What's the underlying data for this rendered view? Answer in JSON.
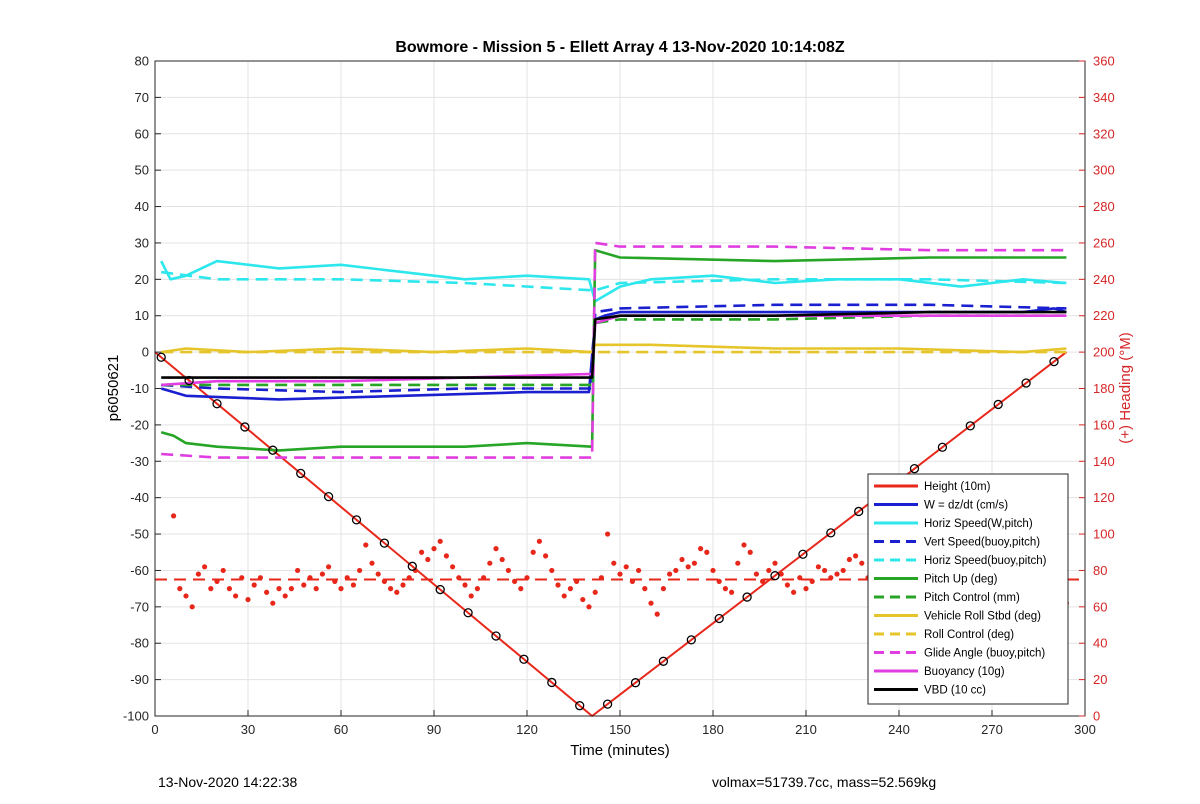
{
  "footer": {
    "timestamp": "13-Nov-2020 14:22:38",
    "summary": "volmax=51739.7cc, mass=52.569kg"
  },
  "chart_data": {
    "type": "line",
    "title": "Bowmore - Mission 5 - Ellett Array 4 13-Nov-2020 10:14:08Z",
    "xlabel": "Time (minutes)",
    "ylabel": "p6050621",
    "y2label": "(+) Heading (°M)",
    "xlim": [
      0,
      300
    ],
    "ylim": [
      -100,
      80
    ],
    "y2lim": [
      0,
      360
    ],
    "xticks": [
      0,
      30,
      60,
      90,
      120,
      150,
      180,
      210,
      240,
      270,
      300
    ],
    "yticks": [
      -100,
      -90,
      -80,
      -70,
      -60,
      -50,
      -40,
      -30,
      -20,
      -10,
      0,
      10,
      20,
      30,
      40,
      50,
      60,
      70,
      80
    ],
    "y2ticks": [
      0,
      20,
      40,
      60,
      80,
      100,
      120,
      140,
      160,
      180,
      200,
      220,
      240,
      260,
      280,
      300,
      320,
      340,
      360
    ],
    "grid": true,
    "legend_position": "lower-right",
    "colors": {
      "red": "#e8271b",
      "blue": "#1a1fcf",
      "cyan": "#2de7ec",
      "green": "#27a526",
      "yellow": "#e5c52a",
      "magenta": "#e03ee0",
      "black": "#000000",
      "heading_axis": "#d62728"
    },
    "series": [
      {
        "name": "Height (10m)",
        "color": "red",
        "style": "solid",
        "x": [
          0,
          141,
          294
        ],
        "y": [
          0,
          -100,
          0
        ]
      },
      {
        "name": "W = dz/dt (cm/s)",
        "color": "blue",
        "style": "solid",
        "x": [
          2,
          10,
          40,
          80,
          120,
          140,
          142,
          145,
          150,
          160,
          200,
          240,
          280,
          290,
          294
        ],
        "y": [
          -10,
          -12,
          -13,
          -12,
          -11,
          -11,
          9,
          10,
          11,
          11,
          11,
          11,
          11,
          12,
          11
        ]
      },
      {
        "name": "Horiz Speed(W,pitch)",
        "color": "cyan",
        "style": "solid",
        "x": [
          2,
          5,
          10,
          20,
          40,
          60,
          80,
          100,
          120,
          140,
          142,
          150,
          160,
          180,
          200,
          220,
          240,
          260,
          280,
          294
        ],
        "y": [
          25,
          20,
          21,
          25,
          23,
          24,
          22,
          20,
          21,
          20,
          14,
          18,
          20,
          21,
          19,
          20,
          20,
          18,
          20,
          19
        ]
      },
      {
        "name": "Vert Speed(buoy,pitch)",
        "color": "blue",
        "style": "dashed",
        "x": [
          2,
          20,
          60,
          100,
          141,
          142,
          150,
          200,
          250,
          294
        ],
        "y": [
          -9,
          -10,
          -11,
          -10,
          -10,
          11,
          12,
          13,
          13,
          12
        ]
      },
      {
        "name": "Horiz Speed(buoy,pitch)",
        "color": "cyan",
        "style": "dashed",
        "x": [
          2,
          20,
          60,
          100,
          141,
          142,
          150,
          200,
          250,
          294
        ],
        "y": [
          22,
          20,
          20,
          19,
          17,
          17,
          19,
          20,
          20,
          19
        ]
      },
      {
        "name": "Pitch Up (deg)",
        "color": "green",
        "style": "solid",
        "x": [
          2,
          6,
          10,
          20,
          40,
          60,
          80,
          100,
          120,
          141,
          142,
          150,
          200,
          250,
          294
        ],
        "y": [
          -22,
          -23,
          -25,
          -26,
          -27,
          -26,
          -26,
          -26,
          -25,
          -26,
          28,
          26,
          25,
          26,
          26
        ]
      },
      {
        "name": "Pitch Control (mm)",
        "color": "green",
        "style": "dashed",
        "x": [
          2,
          20,
          60,
          100,
          141,
          142,
          150,
          200,
          250,
          294
        ],
        "y": [
          -9,
          -9,
          -9,
          -9,
          -9,
          8,
          9,
          9,
          10,
          10
        ]
      },
      {
        "name": "Vehicle Roll Stbd (deg)",
        "color": "yellow",
        "style": "solid",
        "x": [
          2,
          10,
          30,
          60,
          90,
          120,
          141,
          142,
          160,
          200,
          240,
          280,
          294
        ],
        "y": [
          0,
          1,
          0,
          1,
          0,
          1,
          0,
          2,
          2,
          1,
          1,
          0,
          1
        ]
      },
      {
        "name": "Roll Control (deg)",
        "color": "yellow",
        "style": "dashed",
        "x": [
          2,
          20,
          60,
          100,
          141,
          142,
          180,
          240,
          294
        ],
        "y": [
          0,
          0,
          0,
          0,
          0,
          0,
          0,
          0,
          0
        ]
      },
      {
        "name": "Glide Angle (buoy,pitch)",
        "color": "magenta",
        "style": "dashed",
        "x": [
          2,
          20,
          60,
          100,
          141,
          142,
          150,
          200,
          250,
          294
        ],
        "y": [
          -28,
          -29,
          -29,
          -29,
          -29,
          30,
          29,
          29,
          28,
          28
        ]
      },
      {
        "name": "Buoyancy (10g)",
        "color": "magenta",
        "style": "solid",
        "x": [
          2,
          20,
          60,
          100,
          141,
          142,
          150,
          200,
          250,
          294
        ],
        "y": [
          -9,
          -8,
          -8,
          -7,
          -6,
          8,
          10,
          10,
          10,
          10
        ]
      },
      {
        "name": "VBD (10 cc)",
        "color": "black",
        "style": "solid",
        "x": [
          2,
          141,
          142,
          150,
          200,
          250,
          294
        ],
        "y": [
          -7,
          -7,
          9,
          10,
          10,
          11,
          11
        ]
      }
    ],
    "heading_reference": {
      "y2": 75,
      "color": "red",
      "style": "dashed"
    },
    "heading_points": {
      "x": [
        6,
        8,
        10,
        12,
        14,
        16,
        18,
        20,
        22,
        24,
        26,
        28,
        30,
        32,
        34,
        36,
        38,
        40,
        42,
        44,
        46,
        48,
        50,
        52,
        54,
        56,
        58,
        60,
        62,
        64,
        66,
        68,
        70,
        72,
        74,
        76,
        78,
        80,
        82,
        84,
        86,
        88,
        90,
        92,
        94,
        96,
        98,
        100,
        102,
        104,
        106,
        108,
        110,
        112,
        114,
        116,
        118,
        120,
        122,
        124,
        126,
        128,
        130,
        132,
        134,
        136,
        138,
        140,
        142,
        144,
        146,
        148,
        150,
        152,
        154,
        156,
        158,
        160,
        162,
        164,
        166,
        168,
        170,
        172,
        174,
        176,
        178,
        180,
        182,
        184,
        186,
        188,
        190,
        192,
        194,
        196,
        198,
        200,
        202,
        204,
        206,
        208,
        210,
        212,
        214,
        216,
        218,
        220,
        222,
        224,
        226,
        228,
        230,
        232,
        234,
        236,
        238,
        240,
        242,
        244,
        246,
        248,
        250,
        252,
        254,
        256,
        258,
        260,
        262,
        264,
        266,
        268,
        270,
        272,
        274,
        276,
        278,
        280,
        282,
        284,
        286,
        288,
        290,
        292,
        294
      ],
      "y2": [
        110,
        70,
        66,
        60,
        78,
        82,
        70,
        74,
        80,
        70,
        66,
        76,
        64,
        72,
        76,
        68,
        62,
        70,
        66,
        70,
        80,
        72,
        76,
        70,
        78,
        82,
        74,
        70,
        76,
        72,
        80,
        94,
        84,
        78,
        74,
        70,
        68,
        72,
        76,
        80,
        90,
        86,
        92,
        96,
        88,
        82,
        76,
        72,
        66,
        70,
        76,
        84,
        92,
        86,
        80,
        74,
        70,
        76,
        90,
        96,
        88,
        80,
        72,
        66,
        70,
        74,
        64,
        60,
        68,
        76,
        100,
        84,
        78,
        82,
        74,
        80,
        70,
        62,
        56,
        70,
        78,
        80,
        86,
        82,
        84,
        92,
        90,
        80,
        74,
        70,
        68,
        84,
        94,
        90,
        78,
        74,
        80,
        84,
        78,
        72,
        68,
        76,
        70,
        74,
        82,
        80,
        76,
        78,
        80,
        86,
        88,
        84,
        76,
        70,
        78,
        76,
        74,
        72,
        70,
        74,
        80,
        76,
        82,
        88,
        84,
        86,
        80,
        72,
        68,
        70,
        72,
        62,
        68,
        70,
        76,
        82,
        70,
        64,
        66,
        72,
        74,
        70,
        68,
        60,
        62
      ]
    }
  }
}
